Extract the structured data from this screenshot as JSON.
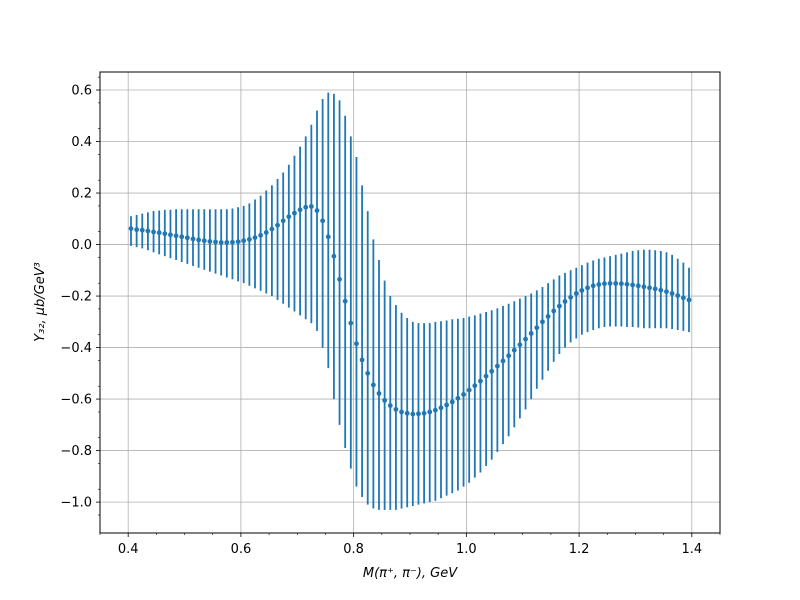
{
  "chart_data": {
    "type": "scatter",
    "title": "",
    "xlabel": "M(π⁺, π⁻), GeV",
    "ylabel": "Y₃₂, μb/GeV³",
    "xlim": [
      0.35,
      1.45
    ],
    "ylim": [
      -1.12,
      0.67
    ],
    "xticks": [
      0.4,
      0.6,
      0.8,
      1.0,
      1.2,
      1.4
    ],
    "xtick_labels": [
      "0.4",
      "0.6",
      "0.8",
      "1.0",
      "1.2",
      "1.4"
    ],
    "yticks": [
      0.6,
      0.4,
      0.2,
      0.0,
      -0.2,
      -0.4,
      -0.6,
      -0.8,
      -1.0
    ],
    "ytick_labels": [
      "0.6",
      "0.4",
      "0.2",
      "0.0",
      "−0.2",
      "−0.4",
      "−0.6",
      "−0.8",
      "−1.0"
    ],
    "grid": true,
    "legend": "none",
    "color": "#1f77b4",
    "series": [
      {
        "x": [
          0.405,
          0.415,
          0.425,
          0.435,
          0.445,
          0.455,
          0.465,
          0.475,
          0.485,
          0.495,
          0.505,
          0.515,
          0.525,
          0.535,
          0.545,
          0.555,
          0.565,
          0.575,
          0.585,
          0.595,
          0.605,
          0.615,
          0.625,
          0.635,
          0.645,
          0.655,
          0.665,
          0.675,
          0.685,
          0.695,
          0.705,
          0.715,
          0.725,
          0.735,
          0.745,
          0.755,
          0.765,
          0.775,
          0.785,
          0.795,
          0.805,
          0.815,
          0.825,
          0.835,
          0.845,
          0.855,
          0.865,
          0.875,
          0.885,
          0.895,
          0.905,
          0.915,
          0.925,
          0.935,
          0.945,
          0.955,
          0.965,
          0.975,
          0.985,
          0.995,
          1.005,
          1.015,
          1.025,
          1.035,
          1.045,
          1.055,
          1.065,
          1.075,
          1.085,
          1.095,
          1.105,
          1.115,
          1.125,
          1.135,
          1.145,
          1.155,
          1.165,
          1.175,
          1.185,
          1.195,
          1.205,
          1.215,
          1.225,
          1.235,
          1.245,
          1.255,
          1.265,
          1.275,
          1.285,
          1.295,
          1.305,
          1.315,
          1.325,
          1.335,
          1.345,
          1.355,
          1.365,
          1.375,
          1.385,
          1.395
        ],
        "y": [
          0.062,
          0.058,
          0.056,
          0.053,
          0.049,
          0.046,
          0.042,
          0.038,
          0.034,
          0.03,
          0.026,
          0.022,
          0.018,
          0.015,
          0.012,
          0.01,
          0.008,
          0.008,
          0.009,
          0.011,
          0.015,
          0.02,
          0.027,
          0.036,
          0.047,
          0.06,
          0.075,
          0.092,
          0.108,
          0.122,
          0.135,
          0.145,
          0.148,
          0.132,
          0.092,
          0.03,
          -0.045,
          -0.135,
          -0.22,
          -0.305,
          -0.385,
          -0.448,
          -0.5,
          -0.545,
          -0.578,
          -0.605,
          -0.625,
          -0.64,
          -0.65,
          -0.655,
          -0.658,
          -0.657,
          -0.655,
          -0.65,
          -0.643,
          -0.634,
          -0.623,
          -0.611,
          -0.597,
          -0.582,
          -0.565,
          -0.548,
          -0.53,
          -0.511,
          -0.492,
          -0.472,
          -0.452,
          -0.432,
          -0.41,
          -0.389,
          -0.367,
          -0.345,
          -0.323,
          -0.3,
          -0.279,
          -0.258,
          -0.239,
          -0.221,
          -0.205,
          -0.19,
          -0.178,
          -0.168,
          -0.16,
          -0.155,
          -0.152,
          -0.151,
          -0.151,
          -0.152,
          -0.154,
          -0.157,
          -0.16,
          -0.164,
          -0.168,
          -0.172,
          -0.177,
          -0.183,
          -0.19,
          -0.198,
          -0.207,
          -0.215
        ],
        "err_low": [
          -0.005,
          -0.01,
          -0.015,
          -0.022,
          -0.03,
          -0.038,
          -0.045,
          -0.053,
          -0.06,
          -0.068,
          -0.075,
          -0.083,
          -0.09,
          -0.098,
          -0.105,
          -0.113,
          -0.12,
          -0.128,
          -0.135,
          -0.143,
          -0.15,
          -0.16,
          -0.17,
          -0.18,
          -0.19,
          -0.2,
          -0.215,
          -0.23,
          -0.245,
          -0.26,
          -0.275,
          -0.29,
          -0.305,
          -0.335,
          -0.4,
          -0.48,
          -0.6,
          -0.7,
          -0.79,
          -0.87,
          -0.94,
          -0.98,
          -1.01,
          -1.025,
          -1.03,
          -1.03,
          -1.03,
          -1.03,
          -1.025,
          -1.02,
          -1.015,
          -1.01,
          -1.005,
          -1.0,
          -0.995,
          -0.985,
          -0.975,
          -0.965,
          -0.955,
          -0.94,
          -0.925,
          -0.905,
          -0.885,
          -0.86,
          -0.835,
          -0.805,
          -0.775,
          -0.745,
          -0.71,
          -0.675,
          -0.64,
          -0.6,
          -0.56,
          -0.525,
          -0.49,
          -0.455,
          -0.425,
          -0.4,
          -0.38,
          -0.365,
          -0.35,
          -0.34,
          -0.332,
          -0.325,
          -0.32,
          -0.318,
          -0.318,
          -0.318,
          -0.32,
          -0.32,
          -0.322,
          -0.325,
          -0.325,
          -0.325,
          -0.325,
          -0.325,
          -0.328,
          -0.332,
          -0.335,
          -0.34
        ],
        "err_high": [
          0.11,
          0.115,
          0.12,
          0.125,
          0.13,
          0.132,
          0.135,
          0.135,
          0.137,
          0.137,
          0.137,
          0.137,
          0.137,
          0.137,
          0.137,
          0.137,
          0.137,
          0.137,
          0.14,
          0.145,
          0.15,
          0.16,
          0.175,
          0.19,
          0.21,
          0.23,
          0.255,
          0.28,
          0.31,
          0.345,
          0.38,
          0.42,
          0.465,
          0.52,
          0.565,
          0.59,
          0.585,
          0.56,
          0.5,
          0.42,
          0.34,
          0.23,
          0.13,
          0.02,
          -0.06,
          -0.14,
          -0.2,
          -0.235,
          -0.265,
          -0.285,
          -0.3,
          -0.305,
          -0.305,
          -0.305,
          -0.3,
          -0.298,
          -0.295,
          -0.29,
          -0.288,
          -0.285,
          -0.28,
          -0.275,
          -0.268,
          -0.262,
          -0.255,
          -0.248,
          -0.238,
          -0.23,
          -0.22,
          -0.21,
          -0.2,
          -0.19,
          -0.178,
          -0.165,
          -0.15,
          -0.135,
          -0.12,
          -0.11,
          -0.1,
          -0.09,
          -0.08,
          -0.07,
          -0.062,
          -0.055,
          -0.05,
          -0.045,
          -0.04,
          -0.035,
          -0.03,
          -0.025,
          -0.022,
          -0.02,
          -0.02,
          -0.022,
          -0.025,
          -0.03,
          -0.04,
          -0.055,
          -0.07,
          -0.09
        ]
      }
    ]
  }
}
